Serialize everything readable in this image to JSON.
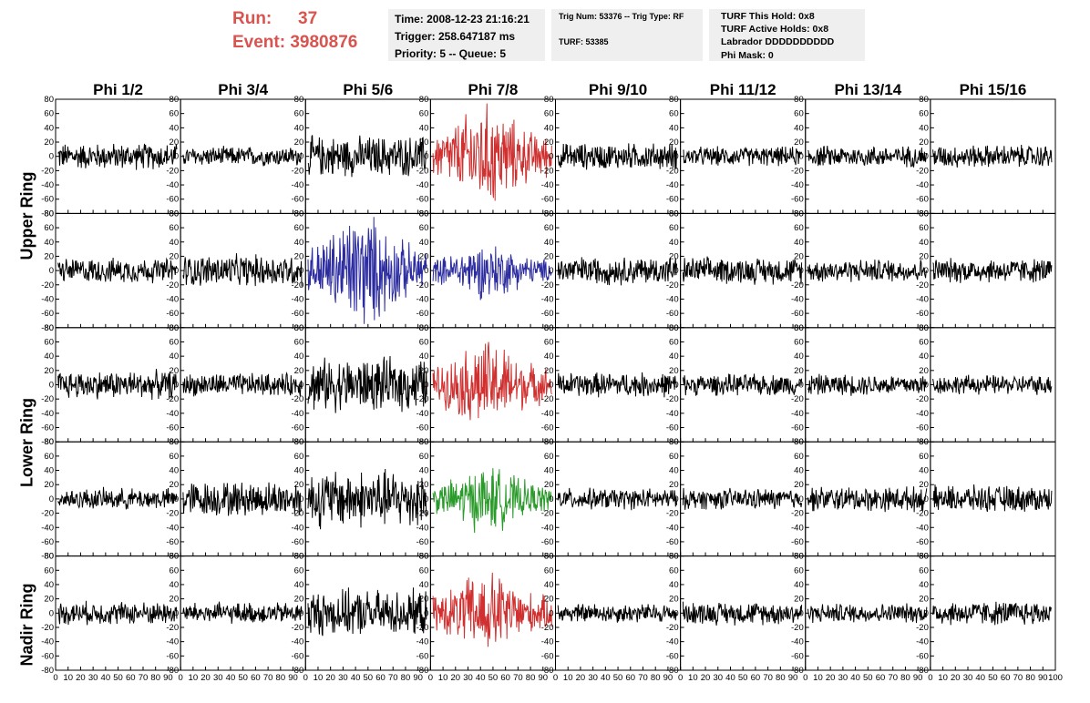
{
  "header": {
    "run_label": "Run:",
    "run_value": "37",
    "event_label": "Event:",
    "event_value": "3980876"
  },
  "info_box1": {
    "line1": "Time: 2008-12-23 21:16:21",
    "line2": "Trigger: 258.647187 ms",
    "line3": "Priority: 5 -- Queue: 5"
  },
  "info_box2": {
    "line1": "Trig Num: 53376 -- Trig Type: RF",
    "line2": "TURF: 53385"
  },
  "info_box3": {
    "line1": "TURF This Hold: 0x8",
    "line2": "TURF Active Holds: 0x8",
    "line3": "Labrador DDDDDDDDDD",
    "line4": "Phi Mask: 0"
  },
  "ring_labels": [
    "Upper Ring",
    "Lower Ring",
    "Nadir Ring"
  ],
  "colors": {
    "header_red": "#d9534f",
    "trace_default": "#000000",
    "trace_red": "#d03030",
    "trace_blue": "#2c2ca0",
    "trace_green": "#2a9a2a",
    "info_box_bg": "#efefef"
  },
  "chart_data": {
    "type": "line",
    "columns": [
      "Phi 1/2",
      "Phi 3/4",
      "Phi 5/6",
      "Phi 7/8",
      "Phi 9/10",
      "Phi 11/12",
      "Phi 13/14",
      "Phi 15/16"
    ],
    "ylim": [
      -80,
      80
    ],
    "yticks": [
      -80,
      -60,
      -40,
      -20,
      0,
      20,
      40,
      60,
      80
    ],
    "xlim": [
      0,
      100
    ],
    "xticks": [
      0,
      10,
      20,
      30,
      40,
      50,
      60,
      70,
      80,
      90,
      100
    ],
    "rows": [
      {
        "amplitudes": [
          15,
          11,
          23,
          41,
          15,
          11,
          12,
          13
        ],
        "colors": [
          "trace_default",
          "trace_default",
          "trace_default",
          "trace_red",
          "trace_default",
          "trace_default",
          "trace_default",
          "trace_default"
        ]
      },
      {
        "amplitudes": [
          14,
          18,
          46,
          22,
          16,
          15,
          13,
          14
        ],
        "colors": [
          "trace_default",
          "trace_default",
          "trace_blue",
          "trace_blue",
          "trace_default",
          "trace_default",
          "trace_default",
          "trace_default"
        ]
      },
      {
        "amplitudes": [
          16,
          13,
          30,
          35,
          14,
          12,
          12,
          11
        ],
        "colors": [
          "trace_default",
          "trace_default",
          "trace_default",
          "trace_red",
          "trace_default",
          "trace_default",
          "trace_default",
          "trace_default"
        ]
      },
      {
        "amplitudes": [
          12,
          20,
          33,
          26,
          12,
          12,
          14,
          15
        ],
        "colors": [
          "trace_default",
          "trace_default",
          "trace_default",
          "trace_green",
          "trace_default",
          "trace_default",
          "trace_default",
          "trace_default"
        ]
      },
      {
        "amplitudes": [
          13,
          12,
          26,
          33,
          11,
          13,
          11,
          14
        ],
        "colors": [
          "trace_default",
          "trace_default",
          "trace_default",
          "trace_red",
          "trace_default",
          "trace_default",
          "trace_default",
          "trace_default"
        ]
      }
    ]
  }
}
